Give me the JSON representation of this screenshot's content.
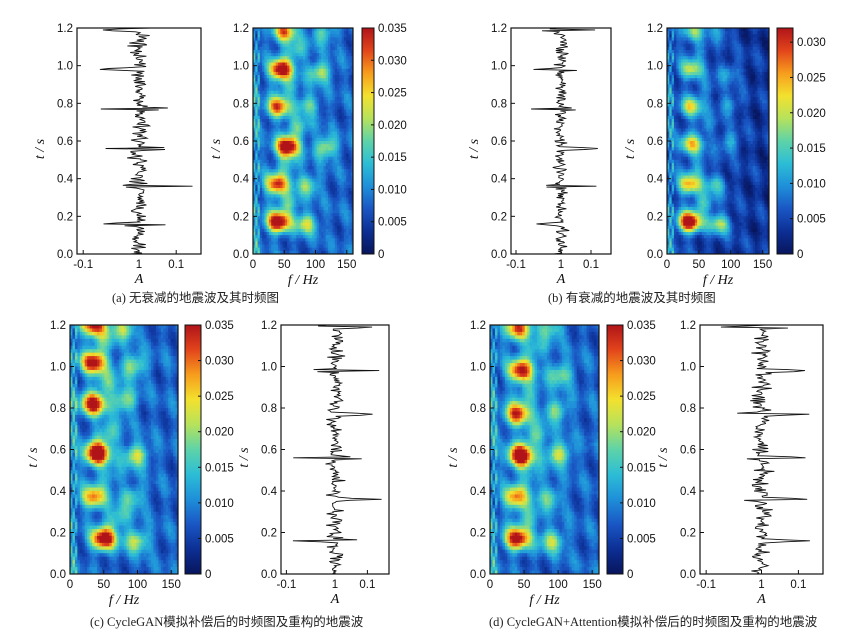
{
  "colormap": [
    "#08155c",
    "#0c2f94",
    "#1a56c4",
    "#1f8fd9",
    "#2cbdd6",
    "#5ed3a8",
    "#b6e25c",
    "#f3e12e",
    "#f79d1d",
    "#e2451b",
    "#b01419"
  ],
  "panels": [
    {
      "id": "a",
      "caption": "(a) 无衰减的地震波及其时频图",
      "order": [
        "trace",
        "tf"
      ],
      "trace": {
        "y_label": "t / s",
        "x_label": "A",
        "x_ticks": [
          "-0.1",
          "1",
          "0.1"
        ],
        "y_ticks": [
          "0.0",
          "0.2",
          "0.4",
          "0.6",
          "0.8",
          "1.0",
          "1.2"
        ],
        "attenuated": false,
        "seed": 11
      },
      "tf": {
        "y_label": "t / s",
        "x_label": "f / Hz",
        "x_ticks": [
          "0",
          "50",
          "100",
          "150"
        ],
        "y_ticks": [
          "0.0",
          "0.2",
          "0.4",
          "0.6",
          "0.8",
          "1.0",
          "1.2"
        ],
        "attenuated": false,
        "seed": 21
      },
      "colorbar": {
        "ticks": [
          "0.035",
          "0.030",
          "0.025",
          "0.020",
          "0.015",
          "0.010",
          "0.005",
          "0"
        ]
      }
    },
    {
      "id": "b",
      "caption": "(b) 有衰减的地震波及其时频图",
      "order": [
        "trace",
        "tf"
      ],
      "trace": {
        "y_label": "t / s",
        "x_label": "A",
        "x_ticks": [
          "-0.1",
          "1",
          "0.1"
        ],
        "y_ticks": [
          "0.0",
          "0.2",
          "0.4",
          "0.6",
          "0.8",
          "1.0",
          "1.2"
        ],
        "attenuated": true,
        "seed": 12
      },
      "tf": {
        "y_label": "t / s",
        "x_label": "f / Hz",
        "x_ticks": [
          "0",
          "50",
          "100",
          "150"
        ],
        "y_ticks": [
          "0.0",
          "0.2",
          "0.4",
          "0.6",
          "0.8",
          "1.0",
          "1.2"
        ],
        "attenuated": true,
        "seed": 22
      },
      "colorbar": {
        "ticks": [
          "0.030",
          "0.025",
          "0.020",
          "0.015",
          "0.010",
          "0.005",
          "0"
        ]
      }
    },
    {
      "id": "c",
      "caption": "(c) CycleGAN模拟补偿后的时频图及重构的地震波",
      "order": [
        "tf",
        "trace"
      ],
      "trace": {
        "y_label": "t / s",
        "x_label": "A",
        "x_ticks": [
          "-0.1",
          "1",
          "0.1"
        ],
        "y_ticks": [
          "0.0",
          "0.2",
          "0.4",
          "0.6",
          "0.8",
          "1.0",
          "1.2"
        ],
        "attenuated": false,
        "seed": 13
      },
      "tf": {
        "y_label": "t / s",
        "x_label": "f / Hz",
        "x_ticks": [
          "0",
          "50",
          "100",
          "150"
        ],
        "y_ticks": [
          "0.0",
          "0.2",
          "0.4",
          "0.6",
          "0.8",
          "1.0",
          "1.2"
        ],
        "attenuated": false,
        "seed": 23
      },
      "colorbar": {
        "ticks": [
          "0.035",
          "0.030",
          "0.025",
          "0.020",
          "0.015",
          "0.010",
          "0.005",
          "0"
        ]
      }
    },
    {
      "id": "d",
      "caption": "(d) CycleGAN+Attention模拟补偿后的时频图及重构的地震波",
      "order": [
        "tf",
        "trace"
      ],
      "trace": {
        "y_label": "t / s",
        "x_label": "A",
        "x_ticks": [
          "-0.1",
          "1",
          "0.1"
        ],
        "y_ticks": [
          "0.0",
          "0.2",
          "0.4",
          "0.6",
          "0.8",
          "1.0",
          "1.2"
        ],
        "attenuated": false,
        "seed": 14
      },
      "tf": {
        "y_label": "t / s",
        "x_label": "f / Hz",
        "x_ticks": [
          "0",
          "50",
          "100",
          "150"
        ],
        "y_ticks": [
          "0.0",
          "0.2",
          "0.4",
          "0.6",
          "0.8",
          "1.0",
          "1.2"
        ],
        "attenuated": false,
        "seed": 24
      },
      "colorbar": {
        "ticks": [
          "0.035",
          "0.030",
          "0.025",
          "0.020",
          "0.015",
          "0.010",
          "0.005",
          "0"
        ]
      }
    }
  ],
  "chart_data": [
    {
      "type": "line",
      "panel": "a-trace",
      "xlabel": "A",
      "ylabel": "t / s",
      "ylim": [
        0.0,
        1.2
      ],
      "x_tick_labels": [
        "-0.1",
        "1",
        "0.1"
      ],
      "description_of_series": "seismic trace without attenuation"
    },
    {
      "type": "heatmap",
      "panel": "a-tf",
      "xlabel": "f / Hz",
      "ylabel": "t / s",
      "xlim": [
        0,
        160
      ],
      "ylim": [
        0.0,
        1.2
      ],
      "colorbar_range": [
        0,
        0.035
      ],
      "hotspots": [
        {
          "t": 0.17,
          "f": 40,
          "value": 0.033
        },
        {
          "t": 0.37,
          "f": 38,
          "value": 0.026
        },
        {
          "t": 0.57,
          "f": 55,
          "value": 0.033
        },
        {
          "t": 0.78,
          "f": 40,
          "value": 0.024
        },
        {
          "t": 0.98,
          "f": 45,
          "value": 0.032
        },
        {
          "t": 1.18,
          "f": 50,
          "value": 0.022
        }
      ]
    },
    {
      "type": "line",
      "panel": "b-trace",
      "xlabel": "A",
      "ylabel": "t / s",
      "ylim": [
        0.0,
        1.2
      ],
      "x_tick_labels": [
        "-0.1",
        "1",
        "0.1"
      ]
    },
    {
      "type": "heatmap",
      "panel": "b-tf",
      "xlabel": "f / Hz",
      "ylabel": "t / s",
      "xlim": [
        0,
        160
      ],
      "ylim": [
        0.0,
        1.2
      ],
      "colorbar_range": [
        0,
        0.032
      ],
      "hotspots": [
        {
          "t": 0.17,
          "f": 35,
          "value": 0.032
        },
        {
          "t": 0.37,
          "f": 35,
          "value": 0.02
        },
        {
          "t": 0.58,
          "f": 38,
          "value": 0.018
        },
        {
          "t": 0.78,
          "f": 38,
          "value": 0.016
        },
        {
          "t": 0.98,
          "f": 38,
          "value": 0.015
        },
        {
          "t": 1.18,
          "f": 40,
          "value": 0.012
        }
      ]
    },
    {
      "type": "heatmap",
      "panel": "c-tf",
      "xlabel": "f / Hz",
      "ylabel": "t / s",
      "xlim": [
        0,
        160
      ],
      "ylim": [
        0.0,
        1.2
      ],
      "colorbar_range": [
        0,
        0.035
      ],
      "hotspots": [
        {
          "t": 0.17,
          "f": 50,
          "value": 0.032
        },
        {
          "t": 0.37,
          "f": 35,
          "value": 0.022
        },
        {
          "t": 0.58,
          "f": 40,
          "value": 0.035
        },
        {
          "t": 0.82,
          "f": 35,
          "value": 0.03
        },
        {
          "t": 1.02,
          "f": 35,
          "value": 0.03
        },
        {
          "t": 1.2,
          "f": 35,
          "value": 0.028
        }
      ]
    },
    {
      "type": "line",
      "panel": "c-trace",
      "xlabel": "A",
      "ylabel": "t / s",
      "ylim": [
        0.0,
        1.2
      ],
      "x_tick_labels": [
        "-0.1",
        "1",
        "0.1"
      ]
    },
    {
      "type": "heatmap",
      "panel": "d-tf",
      "xlabel": "f / Hz",
      "ylabel": "t / s",
      "xlim": [
        0,
        160
      ],
      "ylim": [
        0.0,
        1.2
      ],
      "colorbar_range": [
        0,
        0.035
      ],
      "hotspots": [
        {
          "t": 0.17,
          "f": 40,
          "value": 0.03
        },
        {
          "t": 0.37,
          "f": 38,
          "value": 0.022
        },
        {
          "t": 0.57,
          "f": 45,
          "value": 0.034
        },
        {
          "t": 0.77,
          "f": 40,
          "value": 0.026
        },
        {
          "t": 0.98,
          "f": 45,
          "value": 0.028
        },
        {
          "t": 1.18,
          "f": 40,
          "value": 0.024
        }
      ]
    },
    {
      "type": "line",
      "panel": "d-trace",
      "xlabel": "A",
      "ylabel": "t / s",
      "ylim": [
        0.0,
        1.2
      ],
      "x_tick_labels": [
        "-0.1",
        "1",
        "0.1"
      ]
    }
  ]
}
